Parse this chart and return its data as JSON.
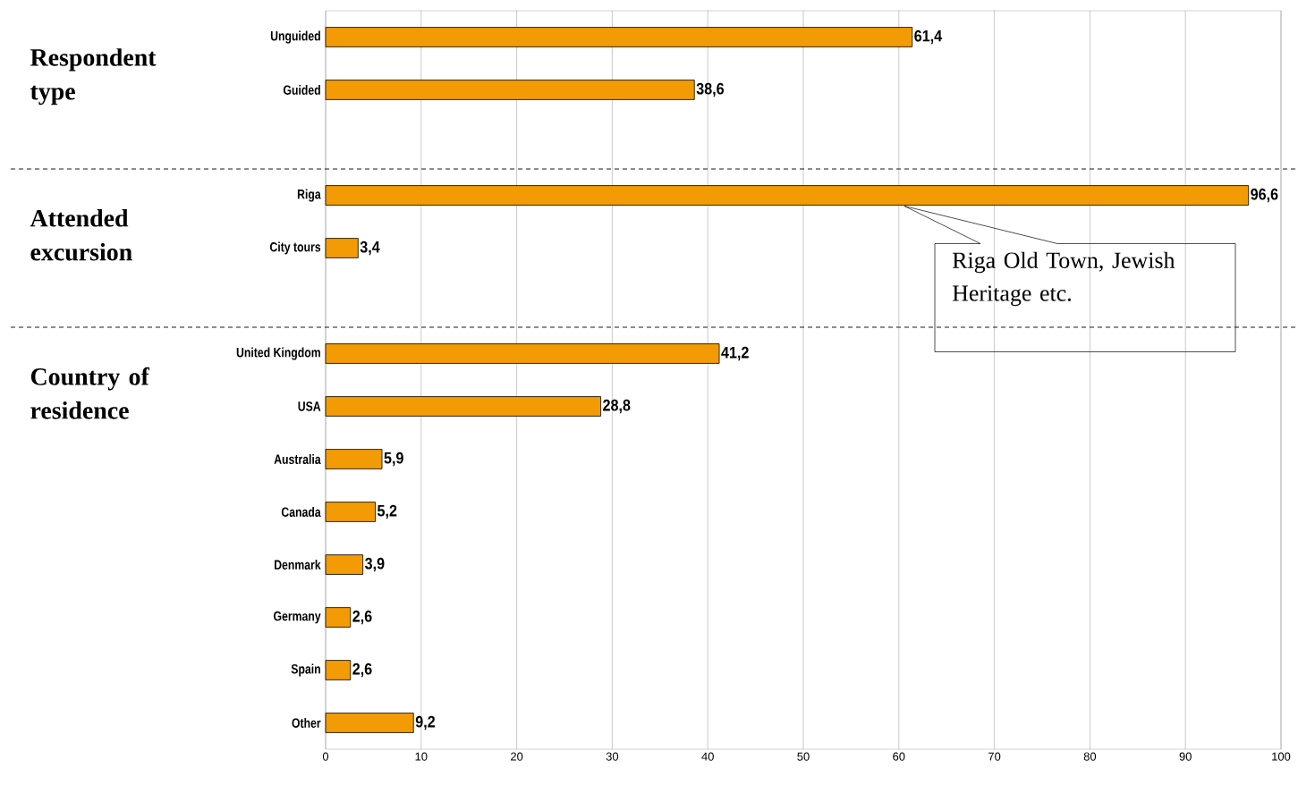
{
  "chart_data": {
    "type": "bar",
    "orientation": "horizontal",
    "color": "#f29b05",
    "categories": [
      "Unguided",
      "Guided",
      null,
      "Riga",
      "City tours",
      null,
      "United Kingdom",
      "USA",
      "Australia",
      "Canada",
      "Denmark",
      "Germany",
      "Spain",
      "Other"
    ],
    "values": [
      61.4,
      38.6,
      null,
      96.6,
      3.4,
      null,
      41.2,
      28.8,
      5.9,
      5.2,
      3.9,
      2.6,
      2.6,
      9.2
    ],
    "value_labels": [
      "61,4",
      "38,6",
      null,
      "96,6",
      "3,4",
      null,
      "41,2",
      "28,8",
      "5,9",
      "5,2",
      "3,9",
      "2,6",
      "2,6",
      "9,2"
    ],
    "xlim": [
      0,
      100
    ],
    "xticks": [
      0,
      10,
      20,
      30,
      40,
      50,
      60,
      70,
      80,
      90,
      100
    ],
    "grid": "x",
    "annotations": [
      "Respondent type",
      "Attended excursion",
      "Country of residence",
      "Riga Old Town, Jewish Heritage etc."
    ]
  }
}
